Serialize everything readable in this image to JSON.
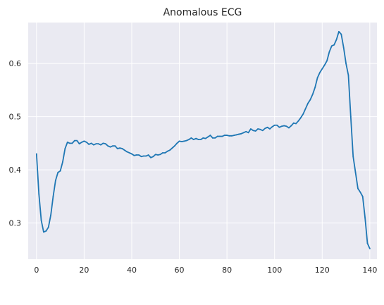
{
  "chart_data": {
    "type": "line",
    "title": "Anomalous ECG",
    "xlabel": "",
    "ylabel": "",
    "xlim": [
      -3.5,
      143
    ],
    "ylim": [
      0.232,
      0.677
    ],
    "grid": true,
    "style": {
      "background": "#eaeaf2",
      "grid_color": "#ffffff",
      "line_color": "#1f77b4"
    },
    "x_ticks": [
      0,
      20,
      40,
      60,
      80,
      100,
      120,
      140
    ],
    "x_tick_labels": [
      "0",
      "20",
      "40",
      "60",
      "80",
      "100",
      "120",
      "140"
    ],
    "y_ticks": [
      0.3,
      0.4,
      0.5,
      0.6
    ],
    "y_tick_labels": [
      "0.3",
      "0.4",
      "0.5",
      "0.6"
    ],
    "series": [
      {
        "values": [
          0.43,
          0.355,
          0.305,
          0.283,
          0.285,
          0.292,
          0.315,
          0.35,
          0.38,
          0.395,
          0.398,
          0.415,
          0.44,
          0.452,
          0.45,
          0.45,
          0.455,
          0.455,
          0.449,
          0.452,
          0.454,
          0.452,
          0.448,
          0.45,
          0.447,
          0.449,
          0.449,
          0.447,
          0.45,
          0.449,
          0.445,
          0.443,
          0.445,
          0.445,
          0.44,
          0.441,
          0.44,
          0.437,
          0.434,
          0.432,
          0.43,
          0.427,
          0.428,
          0.428,
          0.425,
          0.426,
          0.426,
          0.428,
          0.423,
          0.425,
          0.429,
          0.428,
          0.429,
          0.432,
          0.432,
          0.435,
          0.437,
          0.441,
          0.445,
          0.45,
          0.454,
          0.453,
          0.454,
          0.455,
          0.457,
          0.46,
          0.457,
          0.459,
          0.457,
          0.457,
          0.46,
          0.459,
          0.462,
          0.465,
          0.46,
          0.46,
          0.463,
          0.463,
          0.463,
          0.465,
          0.465,
          0.464,
          0.464,
          0.465,
          0.466,
          0.467,
          0.468,
          0.47,
          0.472,
          0.47,
          0.477,
          0.474,
          0.473,
          0.477,
          0.476,
          0.474,
          0.478,
          0.48,
          0.477,
          0.481,
          0.484,
          0.484,
          0.48,
          0.482,
          0.483,
          0.482,
          0.479,
          0.483,
          0.488,
          0.487,
          0.492,
          0.498,
          0.505,
          0.515,
          0.525,
          0.532,
          0.542,
          0.555,
          0.573,
          0.583,
          0.59,
          0.597,
          0.605,
          0.622,
          0.633,
          0.635,
          0.645,
          0.66,
          0.655,
          0.63,
          0.6,
          0.578,
          0.5,
          0.425,
          0.395,
          0.365,
          0.358,
          0.35,
          0.31,
          0.262,
          0.252
        ]
      }
    ]
  }
}
